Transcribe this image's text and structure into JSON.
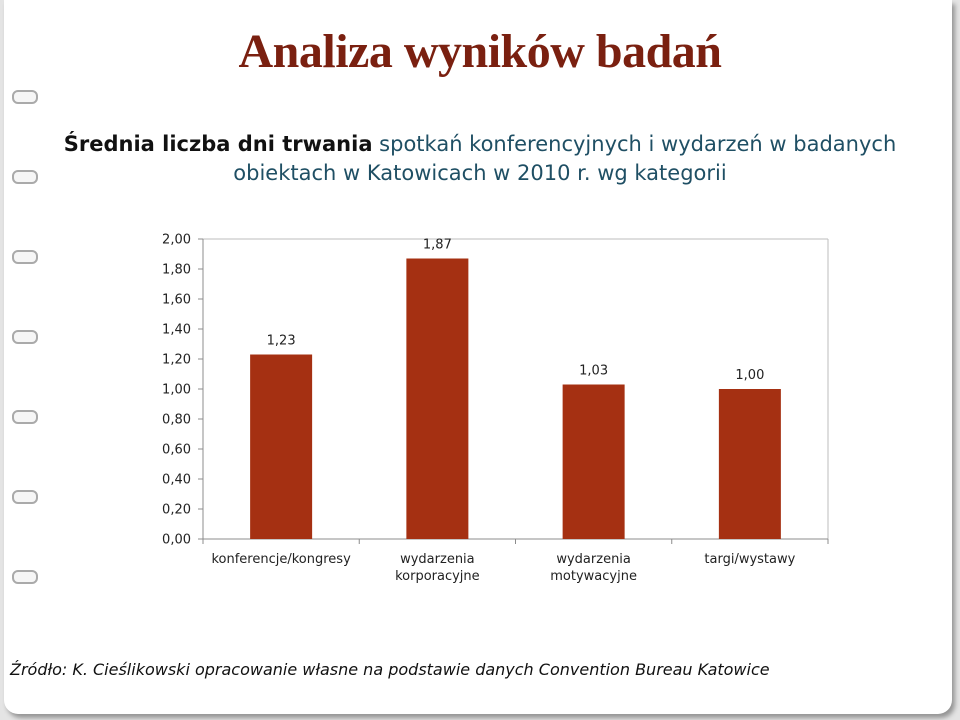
{
  "slide": {
    "title": "Analiza wyników badań",
    "subtitle_strong": "Średnia liczba dni trwania",
    "subtitle_rest": " spotkań konferencyjnych i wydarzeń w badanych obiektach w Katowicach w 2010 r. wg kategorii",
    "source": "Źródło: K. Cieślikowski opracowanie własne na podstawie danych Convention Bureau Katowice"
  },
  "colors": {
    "bar": "#a53012",
    "title": "#7a2010",
    "subtitle": "#1f4f64"
  },
  "chart_data": {
    "type": "bar",
    "categories": [
      [
        "konferencje/kongresy"
      ],
      [
        "wydarzenia",
        "korporacyjne"
      ],
      [
        "wydarzenia",
        "motywacyjne"
      ],
      [
        "targi/wystawy"
      ]
    ],
    "values": [
      1.23,
      1.87,
      1.03,
      1.0
    ],
    "data_labels": [
      "1,23",
      "1,87",
      "1,03",
      "1,00"
    ],
    "yticks": [
      "0,00",
      "0,20",
      "0,40",
      "0,60",
      "0,80",
      "1,00",
      "1,20",
      "1,40",
      "1,60",
      "1,80",
      "2,00"
    ],
    "ylim": [
      0,
      2
    ],
    "grid": false,
    "legend": "none"
  }
}
